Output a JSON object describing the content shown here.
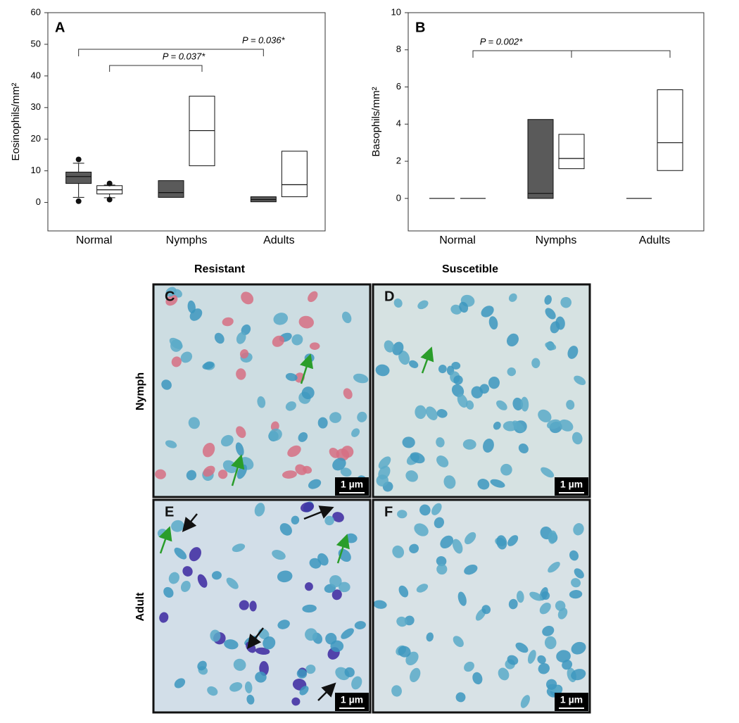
{
  "chart_data": [
    {
      "type": "box",
      "panel_label": "A",
      "ylabel": "Eosinophils/mm²",
      "categories": [
        "Normal",
        "Nymphs",
        "Adults"
      ],
      "series": [
        {
          "color": "#5a5a5a",
          "boxes": [
            {
              "min": 1.6,
              "q1": 6,
              "median": 8.2,
              "q3": 9.6,
              "max": 12.4,
              "outliers": [
                13.6,
                0.4
              ]
            },
            {
              "q1": 1.6,
              "median": 3.1,
              "q3": 6.9
            },
            {
              "q1": 0.2,
              "median": 0.9,
              "q3": 1.8
            }
          ]
        },
        {
          "color": "#ffffff",
          "boxes": [
            {
              "min": 1.5,
              "q1": 2.7,
              "median": 4,
              "q3": 5.3,
              "max": 5.5,
              "outliers": [
                6,
                0.9
              ]
            },
            {
              "q1": 11.6,
              "median": 22.7,
              "q3": 33.6
            },
            {
              "q1": 1.8,
              "median": 5.6,
              "q3": 16.2
            }
          ]
        }
      ],
      "ylim": [
        -9,
        60
      ],
      "yticks": [
        0,
        10,
        20,
        30,
        40,
        50,
        60
      ],
      "annotations": [
        "P = 0.036*",
        "P = 0.037*"
      ]
    },
    {
      "type": "box",
      "panel_label": "B",
      "ylabel": "Basophils/mm²",
      "categories": [
        "Normal",
        "Nymphs",
        "Adults"
      ],
      "series": [
        {
          "color": "#5a5a5a",
          "boxes": [
            {
              "q1": 0,
              "median": 0,
              "q3": 0
            },
            {
              "q1": 0,
              "median": 0.27,
              "q3": 4.25
            },
            {
              "q1": 0,
              "median": 0,
              "q3": 0
            }
          ]
        },
        {
          "color": "#ffffff",
          "boxes": [
            {
              "q1": 0,
              "median": 0,
              "q3": 0
            },
            {
              "q1": 1.6,
              "median": 2.15,
              "q3": 3.45
            },
            {
              "q1": 1.5,
              "median": 3,
              "q3": 5.85
            }
          ]
        }
      ],
      "ylim": [
        -1.75,
        10
      ],
      "yticks": [
        0,
        2,
        4,
        6,
        8,
        10
      ],
      "annotations": [
        "P = 0.002*"
      ]
    }
  ],
  "micrographs": {
    "columns": [
      "Resistant",
      "Suscetible"
    ],
    "rows": [
      "Nymph",
      "Adult"
    ],
    "panels": [
      "C",
      "D",
      "E",
      "F"
    ],
    "scale_bar": "1 µm"
  }
}
